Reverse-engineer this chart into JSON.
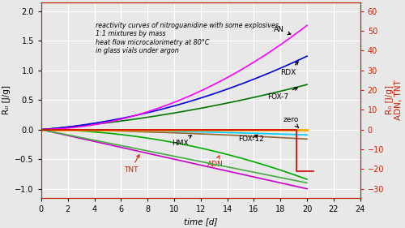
{
  "title_annotation": "reactivity curves of nitroguanidine with some explosives\n1:1 mixtures by mass\nheat flow microcalorimetry at 80°C\nin glass vials under argon",
  "ylabel_left": "R₀ [J/g]",
  "ylabel_right": "R₀ [J/g]\nADN, TNT",
  "xlabel": "time [d]",
  "xlim": [
    0,
    24
  ],
  "ylim_left": [
    -1.15,
    2.15
  ],
  "ylim_right": [
    -34.5,
    64.5
  ],
  "xticks": [
    0,
    2,
    4,
    6,
    8,
    10,
    12,
    14,
    16,
    18,
    20,
    22,
    24
  ],
  "yticks_left": [
    -1,
    -0.5,
    0,
    0.5,
    1,
    1.5,
    2
  ],
  "yticks_right": [
    -30,
    -20,
    -10,
    0,
    10,
    20,
    30,
    40,
    50,
    60
  ],
  "background_color": "#e8e8e8",
  "grid_color": "#ffffff",
  "curve_AN_color": "#ff00ff",
  "curve_RDX_color": "#0000dd",
  "curve_FOX7_color": "#007700",
  "curve_zero_color": "#ffaa00",
  "curve_FOX12_color": "#00ccff",
  "curve_HMX_color": "#996633",
  "curve_ADN_left_color": "#00aa00",
  "curve_TNT_left_color": "#cc00cc",
  "curve_ADN_right_color": "#44aa44",
  "curve_TNT_right_color": "#cc0000",
  "right_axis_color": "#cc2200",
  "ann_fontsize": 6.5,
  "label_fontsize": 7.5,
  "tick_fontsize": 7
}
